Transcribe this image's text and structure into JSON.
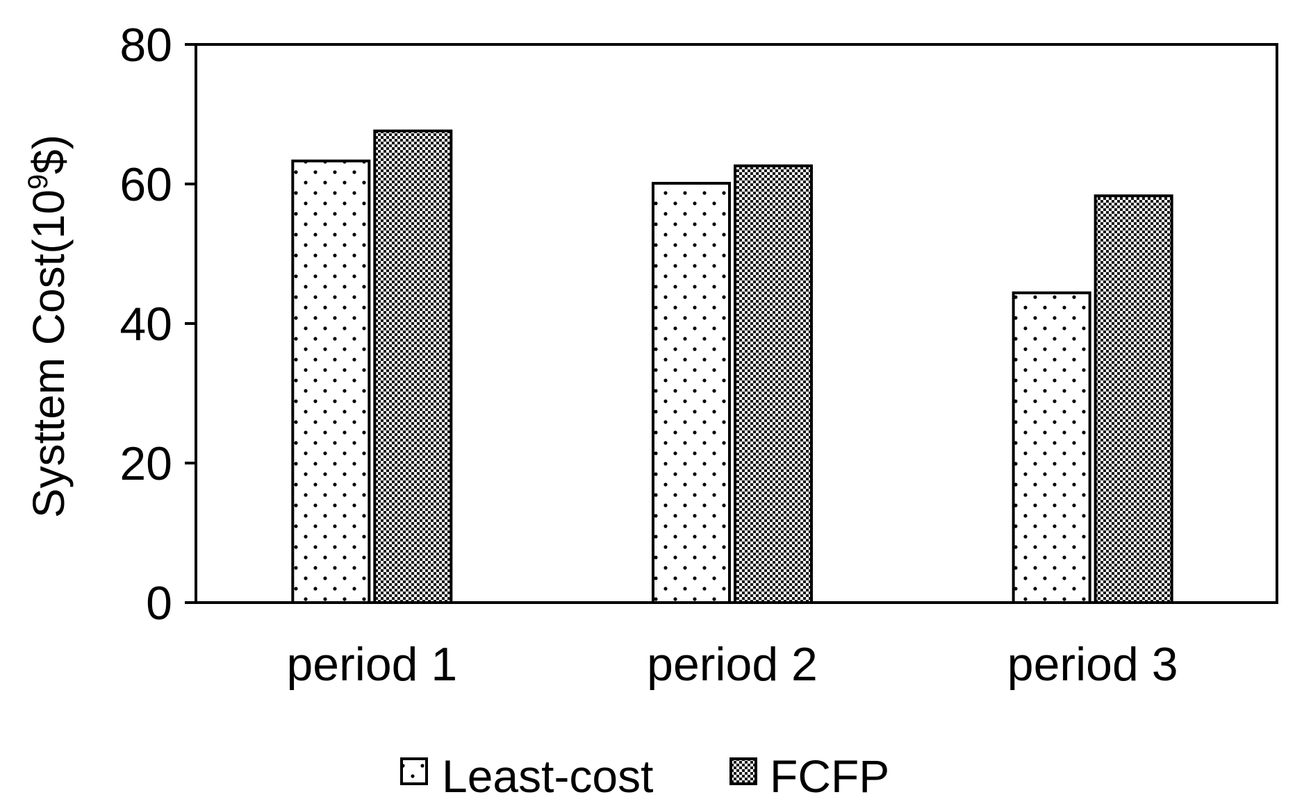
{
  "chart_data": {
    "type": "bar",
    "title": "",
    "xlabel": "",
    "ylabel_main": "Systtem Cost(10",
    "ylabel_sup": "9",
    "ylabel_tail": "$)",
    "categories": [
      "period 1",
      "period 2",
      "period 3"
    ],
    "series": [
      {
        "name": "Least-cost",
        "values": [
          63.3,
          60.1,
          44.4
        ]
      },
      {
        "name": "FCFP",
        "values": [
          67.6,
          62.6,
          58.3
        ]
      }
    ],
    "ylim": [
      0,
      80
    ],
    "yticks": [
      0,
      20,
      40,
      60,
      80
    ],
    "grid": false,
    "legend_position": "bottom"
  }
}
